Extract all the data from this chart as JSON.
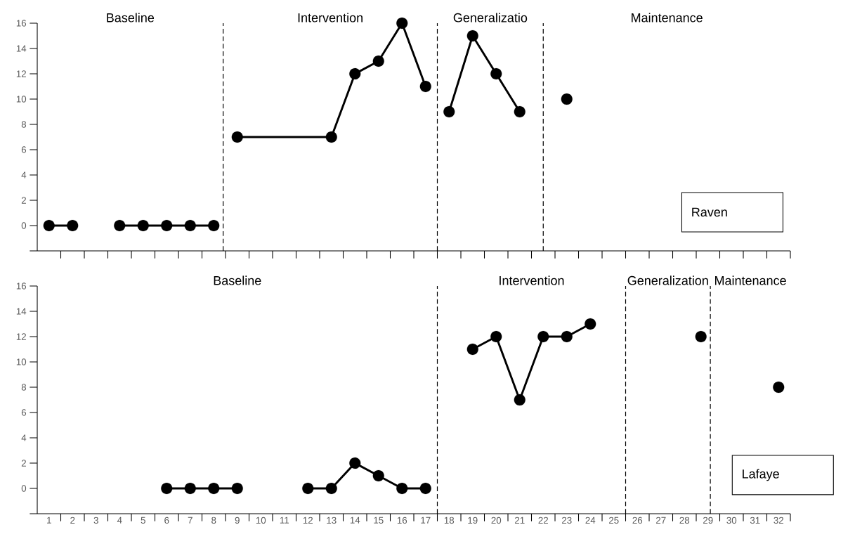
{
  "chart_data": [
    {
      "type": "line",
      "marker": "circle",
      "line_style": "solid",
      "tick_labels": "y",
      "xlim": [
        0.5,
        32.5
      ],
      "ylim": [
        -2,
        16
      ],
      "xticks": [
        {
          "value": 1.5,
          "label": null
        },
        {
          "value": 2.5,
          "label": null
        },
        {
          "value": 3.5,
          "label": null
        },
        {
          "value": 4.5,
          "label": null
        },
        {
          "value": 5.5,
          "label": null
        },
        {
          "value": 6.5,
          "label": null
        },
        {
          "value": 7.5,
          "label": null
        },
        {
          "value": 8.5,
          "label": null
        },
        {
          "value": 9.5,
          "label": null
        },
        {
          "value": 10.5,
          "label": null
        },
        {
          "value": 11.5,
          "label": null
        },
        {
          "value": 12.5,
          "label": null
        },
        {
          "value": 13.5,
          "label": null
        },
        {
          "value": 14.5,
          "label": null
        },
        {
          "value": 15.5,
          "label": null
        },
        {
          "value": 16.5,
          "label": null
        },
        {
          "value": 17.5,
          "label": null
        },
        {
          "value": 18.5,
          "label": null
        },
        {
          "value": 19.5,
          "label": null
        },
        {
          "value": 20.5,
          "label": null
        },
        {
          "value": 21.5,
          "label": null
        },
        {
          "value": 22.5,
          "label": null
        },
        {
          "value": 23.5,
          "label": null
        },
        {
          "value": 24.5,
          "label": null
        },
        {
          "value": 25.5,
          "label": null
        },
        {
          "value": 26.5,
          "label": null
        },
        {
          "value": 27.5,
          "label": null
        },
        {
          "value": 28.5,
          "label": null
        },
        {
          "value": 29.5,
          "label": null
        },
        {
          "value": 30.5,
          "label": null
        },
        {
          "value": 31.5,
          "label": null
        },
        {
          "value": 32.5,
          "label": null
        }
      ],
      "yticks": [
        {
          "value": -2,
          "label": null
        },
        0,
        2,
        4,
        6,
        8,
        10,
        12,
        14,
        16
      ],
      "series": [
        {
          "color": "#000000",
          "x": [
            1,
            2,
            3,
            4,
            5,
            6,
            7,
            8
          ],
          "values": [
            0,
            0,
            null,
            0,
            0,
            0,
            0,
            0
          ]
        },
        {
          "color": "#000000",
          "x": [
            9,
            13,
            14,
            15,
            16,
            17
          ],
          "values": [
            7,
            7,
            12,
            13,
            16,
            11
          ]
        },
        {
          "color": "#000000",
          "x": [
            18,
            19,
            20,
            21
          ],
          "values": [
            9,
            15,
            12,
            9
          ]
        },
        {
          "color": "#000000",
          "x": [
            23
          ],
          "values": [
            10
          ]
        }
      ],
      "ref_lines": [
        {
          "axis": "x",
          "value": 8.4,
          "line_style": "dashed",
          "color": "#000000"
        },
        {
          "axis": "x",
          "value": 17.5,
          "line_style": "dashed",
          "color": "#000000"
        },
        {
          "axis": "x",
          "value": 22,
          "line_style": "dashed",
          "color": "#000000"
        }
      ],
      "annotations": [
        "Baseline",
        "Intervention",
        "Generalizatio",
        "Maintenance",
        "Raven"
      ]
    },
    {
      "type": "line",
      "marker": "circle",
      "line_style": "solid",
      "xlim": [
        0.5,
        32.5
      ],
      "ylim": [
        -2,
        16
      ],
      "xticks": [
        1,
        2,
        3,
        4,
        5,
        6,
        7,
        8,
        9,
        10,
        11,
        12,
        13,
        14,
        15,
        16,
        17,
        18,
        19,
        20,
        21,
        22,
        23,
        24,
        25,
        26,
        27,
        28,
        29,
        30,
        31,
        32,
        {
          "value": 1.5,
          "label": null
        },
        {
          "value": 2.5,
          "label": null
        },
        {
          "value": 3.5,
          "label": null
        },
        {
          "value": 4.5,
          "label": null
        },
        {
          "value": 5.5,
          "label": null
        },
        {
          "value": 6.5,
          "label": null
        },
        {
          "value": 7.5,
          "label": null
        },
        {
          "value": 8.5,
          "label": null
        },
        {
          "value": 9.5,
          "label": null
        },
        {
          "value": 10.5,
          "label": null
        },
        {
          "value": 11.5,
          "label": null
        },
        {
          "value": 12.5,
          "label": null
        },
        {
          "value": 13.5,
          "label": null
        },
        {
          "value": 14.5,
          "label": null
        },
        {
          "value": 15.5,
          "label": null
        },
        {
          "value": 16.5,
          "label": null
        },
        {
          "value": 17.5,
          "label": null
        },
        {
          "value": 18.5,
          "label": null
        },
        {
          "value": 19.5,
          "label": null
        },
        {
          "value": 20.5,
          "label": null
        },
        {
          "value": 21.5,
          "label": null
        },
        {
          "value": 22.5,
          "label": null
        },
        {
          "value": 23.5,
          "label": null
        },
        {
          "value": 24.5,
          "label": null
        },
        {
          "value": 25.5,
          "label": null
        },
        {
          "value": 26.5,
          "label": null
        },
        {
          "value": 27.5,
          "label": null
        },
        {
          "value": 28.5,
          "label": null
        },
        {
          "value": 29.5,
          "label": null
        },
        {
          "value": 30.5,
          "label": null
        },
        {
          "value": 31.5,
          "label": null
        },
        {
          "value": 32.5,
          "label": null
        }
      ],
      "yticks": [
        {
          "value": -2,
          "label": null
        },
        0,
        2,
        4,
        6,
        8,
        10,
        12,
        14,
        16
      ],
      "series": [
        {
          "color": "#000000",
          "x": [
            6,
            7,
            8,
            9,
            10,
            11,
            12,
            13,
            14,
            15,
            16,
            17
          ],
          "values": [
            0,
            0,
            0,
            0,
            null,
            null,
            0,
            0,
            2,
            1,
            0,
            0
          ]
        },
        {
          "color": "#000000",
          "x": [
            19,
            20,
            21,
            22,
            23,
            24
          ],
          "values": [
            11,
            12,
            7,
            12,
            12,
            13
          ]
        },
        {
          "color": "#000000",
          "x": [
            28.7
          ],
          "values": [
            12
          ]
        },
        {
          "color": "#000000",
          "x": [
            32
          ],
          "values": [
            8
          ]
        }
      ],
      "ref_lines": [
        {
          "axis": "x",
          "value": 17.5,
          "line_style": "dashed",
          "color": "#000000"
        },
        {
          "axis": "x",
          "value": 25.5,
          "line_style": "dashed",
          "color": "#000000"
        },
        {
          "axis": "x",
          "value": 29.1,
          "line_style": "dashed",
          "color": "#000000"
        }
      ],
      "annotations": [
        "Baseline",
        "Intervention",
        "Generalization",
        "Maintenance",
        "Lafaye"
      ]
    }
  ]
}
